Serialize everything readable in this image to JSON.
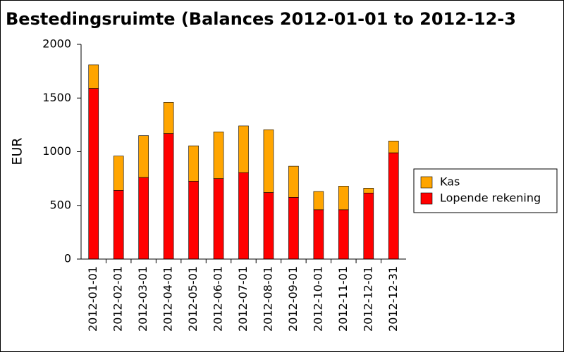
{
  "chart_data": {
    "type": "stacked_bar",
    "title": "Bestedingsruimte (Balances 2012-01-01 to 2012-12-3",
    "ylabel": "EUR",
    "categories": [
      "2012-01-01",
      "2012-02-01",
      "2012-03-01",
      "2012-04-01",
      "2012-05-01",
      "2012-06-01",
      "2012-07-01",
      "2012-08-01",
      "2012-09-01",
      "2012-10-01",
      "2012-11-01",
      "2012-12-01",
      "2012-12-31"
    ],
    "series": [
      {
        "name": "Lopende rekening",
        "color": "#ff0000",
        "values": [
          1590,
          640,
          760,
          1170,
          725,
          750,
          805,
          620,
          575,
          460,
          460,
          615,
          990
        ]
      },
      {
        "name": "Kas",
        "color": "#ffa500",
        "values": [
          220,
          320,
          390,
          290,
          330,
          435,
          435,
          585,
          290,
          170,
          220,
          45,
          110
        ]
      }
    ],
    "ylim": [
      0,
      2000
    ],
    "yticks": [
      0,
      500,
      1000,
      1500,
      2000
    ],
    "grid": false,
    "legend": "right"
  }
}
